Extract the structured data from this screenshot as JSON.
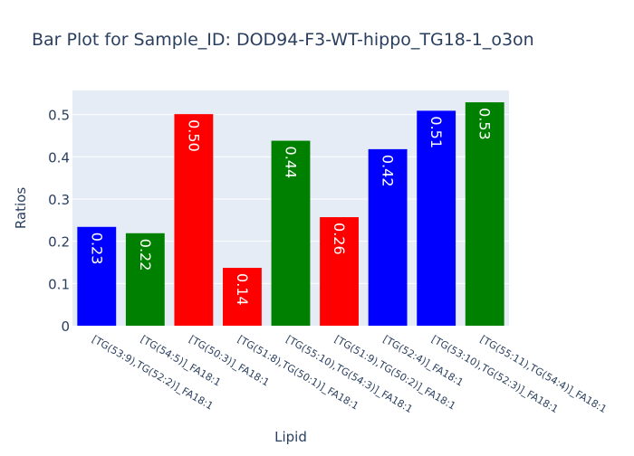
{
  "chart_data": {
    "type": "bar",
    "title": "Bar Plot for Sample_ID: DOD94-F3-WT-hippo_TG18-1_o3on",
    "xlabel": "Lipid",
    "ylabel": "Ratios",
    "categories": [
      "[TG(53:9),TG(52:2)]_FA18:1",
      "[TG(54:5)]_FA18:1",
      "[TG(50:3)]_FA18:1",
      "[TG(51:8),TG(50:1)]_FA18:1",
      "[TG(55:10),TG(54:3)]_FA18:1",
      "[TG(51:9),TG(50:2)]_FA18:1",
      "[TG(52:4)]_FA18:1",
      "[TG(53:10),TG(52:3)]_FA18:1",
      "[TG(55:11),TG(54:4)]_FA18:1"
    ],
    "values": [
      0.234,
      0.219,
      0.501,
      0.137,
      0.438,
      0.257,
      0.418,
      0.509,
      0.529
    ],
    "labels": [
      "0.23",
      "0.22",
      "0.50",
      "0.14",
      "0.44",
      "0.26",
      "0.42",
      "0.51",
      "0.53"
    ],
    "colors": [
      "#0000ff",
      "#008000",
      "#ff0000",
      "#ff0000",
      "#008000",
      "#ff0000",
      "#0000ff",
      "#0000ff",
      "#008000"
    ],
    "yticks": [
      "0",
      "0.1",
      "0.2",
      "0.3",
      "0.4",
      "0.5"
    ],
    "ylim": [
      0,
      0.557
    ],
    "grid": true,
    "plot_bg": "#e5ecf6",
    "text_color": "#2a3f5f"
  }
}
